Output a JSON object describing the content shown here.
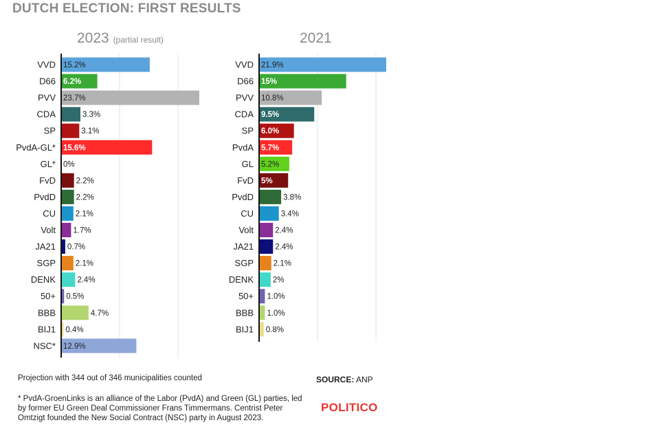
{
  "title": "DUTCH ELECTION: FIRST RESULTS",
  "footer": {
    "projection": "Projection with 344 out of 346 municipalities counted",
    "note": "* PvdA-GroenLinks is an alliance of the Labor (PvdA) and Green (GL) parties, led by former EU Green Deal Commissioner Frans Timmermans. Centrist Peter Omtzigt founded the New Social Contract (NSC) party in August 2023.",
    "source_label": "SOURCE:",
    "source_value": "ANP",
    "brand": "POLITICO"
  },
  "chart_data": [
    {
      "type": "bar",
      "orientation": "horizontal",
      "title": "2023",
      "subtitle": "(partial result)",
      "categories": [
        "VVD",
        "D66",
        "PVV",
        "CDA",
        "SP",
        "PvdA-GL*",
        "GL*",
        "FvD",
        "PvdD",
        "CU",
        "Volt",
        "JA21",
        "SGP",
        "DENK",
        "50+",
        "BBB",
        "BIJ1",
        "NSC*"
      ],
      "values": [
        15.2,
        6.2,
        23.7,
        3.3,
        3.1,
        15.6,
        0,
        2.2,
        2.2,
        2.1,
        1.7,
        0.7,
        2.1,
        2.4,
        0.5,
        4.7,
        0.4,
        12.9
      ],
      "labels": [
        "15.2%",
        "6.2%",
        "23.7%",
        "3.3%",
        "3.1%",
        "15.6%",
        "0%",
        "2.2%",
        "2.2%",
        "2.1%",
        "1.7%",
        "0.7%",
        "2.1%",
        "2.4%",
        "0.5%",
        "4.7%",
        "0.4%",
        "12.9%"
      ],
      "colors": [
        "#5aa3dc",
        "#3aaa35",
        "#b3b3b3",
        "#2f6b6b",
        "#b11313",
        "#ff2a2a",
        "#60d11c",
        "#7a0f0f",
        "#2e6b36",
        "#1c94cc",
        "#8a2e9a",
        "#0c0f7a",
        "#e7831c",
        "#43d8c9",
        "#6c64b0",
        "#b3d66e",
        "#e7df8e",
        "#8fa6d9"
      ],
      "label_colors": [
        "#222222",
        "#ffffff",
        "#222222",
        "#222222",
        "#222222",
        "#ffffff",
        "#222222",
        "#222222",
        "#222222",
        "#222222",
        "#222222",
        "#222222",
        "#222222",
        "#222222",
        "#222222",
        "#222222",
        "#222222",
        "#222222"
      ],
      "xlim": [
        0,
        23.7
      ],
      "grid": true
    },
    {
      "type": "bar",
      "orientation": "horizontal",
      "title": "2021",
      "categories": [
        "VVD",
        "D66",
        "PVV",
        "CDA",
        "SP",
        "PvdA",
        "GL",
        "FvD",
        "PvdD",
        "CU",
        "Volt",
        "JA21",
        "SGP",
        "DENK",
        "50+",
        "BBB",
        "BIJ1"
      ],
      "values": [
        21.9,
        15,
        10.8,
        9.5,
        6.0,
        5.7,
        5.2,
        5,
        3.8,
        3.4,
        2.4,
        2.4,
        2.1,
        2,
        1.0,
        1.0,
        0.8
      ],
      "labels": [
        "21.9%",
        "15%",
        "10.8%",
        "9.5%",
        "6.0%",
        "5.7%",
        "5.2%",
        "5%",
        "3.8%",
        "3.4%",
        "2.4%",
        "2.4%",
        "2.1%",
        "2%",
        "1.0%",
        "1.0%",
        "0.8%"
      ],
      "colors": [
        "#5aa3dc",
        "#3aaa35",
        "#b3b3b3",
        "#2f6b6b",
        "#b11313",
        "#ff2a2a",
        "#60d11c",
        "#7a0f0f",
        "#2e6b36",
        "#1c94cc",
        "#8a2e9a",
        "#0c0f7a",
        "#e7831c",
        "#43d8c9",
        "#6c64b0",
        "#b3d66e",
        "#e7df8e"
      ],
      "label_colors": [
        "#222222",
        "#ffffff",
        "#222222",
        "#ffffff",
        "#ffffff",
        "#ffffff",
        "#222222",
        "#ffffff",
        "#ffffff",
        "#222222",
        "#222222",
        "#222222",
        "#222222",
        "#222222",
        "#222222",
        "#222222",
        "#222222"
      ],
      "xlim": [
        0,
        21.9
      ],
      "grid": true
    }
  ]
}
